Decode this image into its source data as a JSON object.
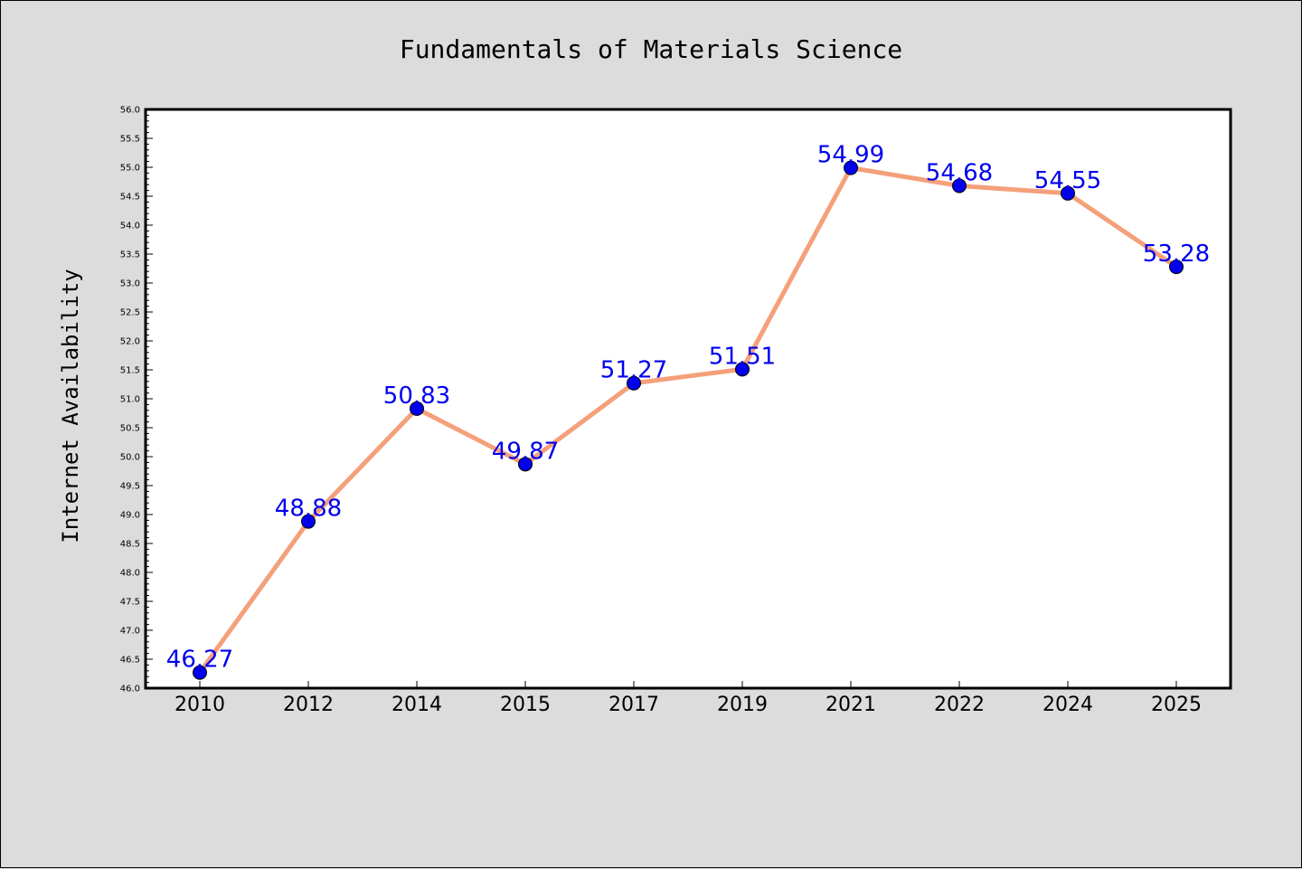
{
  "chart_data": {
    "type": "line",
    "title": "Fundamentals of Materials Science",
    "xlabel": "",
    "ylabel": "Internet Availability",
    "categories": [
      "2010",
      "2012",
      "2014",
      "2015",
      "2017",
      "2019",
      "2021",
      "2022",
      "2024",
      "2025"
    ],
    "series": [
      {
        "values": [
          46.27,
          48.88,
          50.83,
          49.87,
          51.27,
          51.51,
          54.99,
          54.68,
          54.55,
          53.28
        ],
        "labels": [
          "46.27",
          "48.88",
          "50.83",
          "49.87",
          "51.27",
          "51.51",
          "54.99",
          "54.68",
          "54.55",
          "53.28"
        ],
        "line_color": "#f4a07a",
        "marker_color": "#0000ee",
        "label_color": "#0000ee"
      }
    ],
    "ylim": [
      46.0,
      56.0
    ],
    "yticks": [
      "46.0",
      "46.5",
      "47.0",
      "47.5",
      "48.0",
      "48.5",
      "49.0",
      "49.5",
      "50.0",
      "50.5",
      "51.0",
      "51.5",
      "52.0",
      "52.5",
      "53.0",
      "53.5",
      "54.0",
      "54.5",
      "55.0",
      "55.5",
      "56.0"
    ],
    "grid": false,
    "background": "#dcdcdc",
    "plot_background": "#ffffff"
  }
}
